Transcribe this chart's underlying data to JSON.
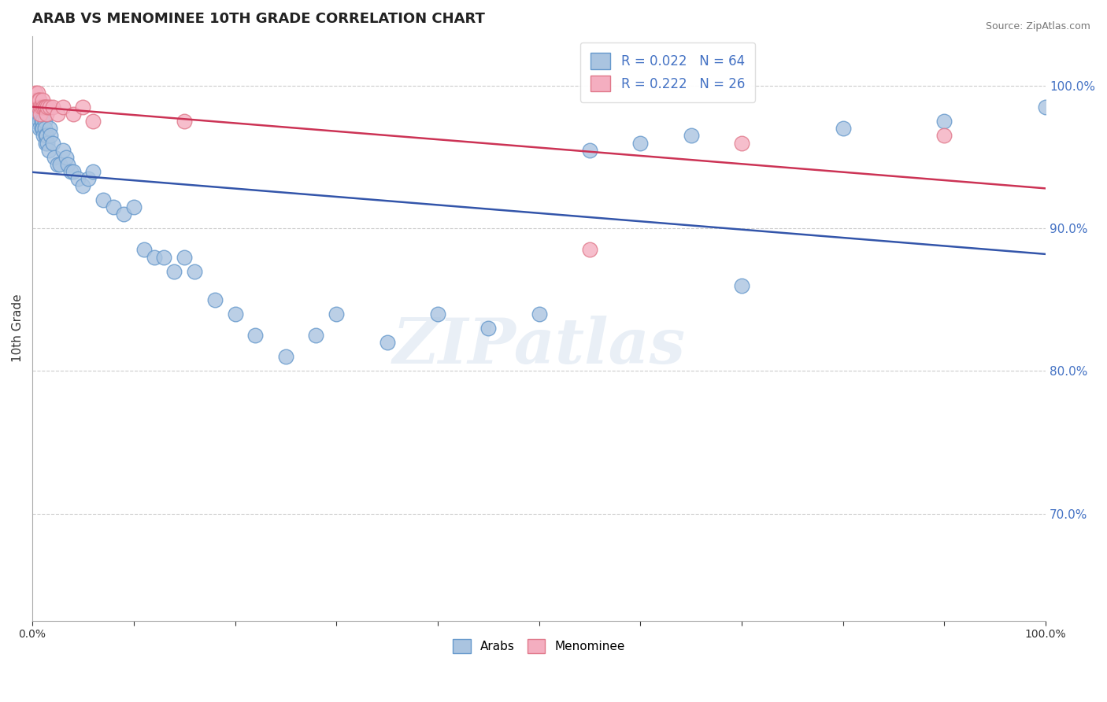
{
  "title": "ARAB VS MENOMINEE 10TH GRADE CORRELATION CHART",
  "source": "Source: ZipAtlas.com",
  "ylabel_label": "10th Grade",
  "xlim": [
    0.0,
    1.0
  ],
  "ylim": [
    0.625,
    1.035
  ],
  "yticks": [
    0.7,
    0.8,
    0.9,
    1.0
  ],
  "xtick_positions": [
    0.0,
    0.1,
    0.2,
    0.3,
    0.4,
    0.5,
    0.6,
    0.7,
    0.8,
    0.9,
    1.0
  ],
  "xtick_labels": [
    "0.0%",
    "",
    "",
    "",
    "",
    "",
    "",
    "",
    "",
    "",
    "100.0%"
  ],
  "arab_color": "#aac4e0",
  "arab_edge_color": "#6699cc",
  "menominee_color": "#f4aec0",
  "menominee_edge_color": "#e0788a",
  "arab_line_color": "#3355aa",
  "menominee_line_color": "#cc3355",
  "arab_R": 0.022,
  "arab_N": 64,
  "menominee_R": 0.222,
  "menominee_N": 26,
  "tick_color": "#4472c4",
  "watermark_text": "ZIPatlas",
  "arab_x": [
    0.003,
    0.003,
    0.004,
    0.005,
    0.005,
    0.006,
    0.006,
    0.007,
    0.007,
    0.008,
    0.009,
    0.009,
    0.01,
    0.01,
    0.011,
    0.012,
    0.012,
    0.013,
    0.013,
    0.014,
    0.015,
    0.016,
    0.017,
    0.018,
    0.02,
    0.022,
    0.025,
    0.027,
    0.03,
    0.033,
    0.035,
    0.038,
    0.04,
    0.045,
    0.05,
    0.055,
    0.06,
    0.07,
    0.08,
    0.09,
    0.1,
    0.11,
    0.12,
    0.13,
    0.14,
    0.15,
    0.16,
    0.18,
    0.2,
    0.22,
    0.25,
    0.28,
    0.3,
    0.35,
    0.4,
    0.45,
    0.5,
    0.55,
    0.6,
    0.65,
    0.7,
    0.8,
    0.9,
    1.0
  ],
  "arab_y": [
    0.98,
    0.975,
    0.99,
    0.99,
    0.985,
    0.985,
    0.98,
    0.975,
    0.97,
    0.985,
    0.975,
    0.97,
    0.975,
    0.97,
    0.965,
    0.975,
    0.97,
    0.965,
    0.96,
    0.965,
    0.96,
    0.955,
    0.97,
    0.965,
    0.96,
    0.95,
    0.945,
    0.945,
    0.955,
    0.95,
    0.945,
    0.94,
    0.94,
    0.935,
    0.93,
    0.935,
    0.94,
    0.92,
    0.915,
    0.91,
    0.915,
    0.885,
    0.88,
    0.88,
    0.87,
    0.88,
    0.87,
    0.85,
    0.84,
    0.825,
    0.81,
    0.825,
    0.84,
    0.82,
    0.84,
    0.83,
    0.84,
    0.955,
    0.96,
    0.965,
    0.86,
    0.97,
    0.975,
    0.985
  ],
  "menominee_x": [
    0.003,
    0.004,
    0.005,
    0.006,
    0.006,
    0.007,
    0.008,
    0.008,
    0.009,
    0.01,
    0.011,
    0.012,
    0.013,
    0.014,
    0.015,
    0.017,
    0.02,
    0.025,
    0.03,
    0.04,
    0.05,
    0.06,
    0.15,
    0.55,
    0.7,
    0.9
  ],
  "menominee_y": [
    0.995,
    0.99,
    0.995,
    0.99,
    0.985,
    0.99,
    0.985,
    0.98,
    0.985,
    0.99,
    0.985,
    0.985,
    0.985,
    0.98,
    0.985,
    0.985,
    0.985,
    0.98,
    0.985,
    0.98,
    0.985,
    0.975,
    0.975,
    0.885,
    0.96,
    0.965
  ]
}
